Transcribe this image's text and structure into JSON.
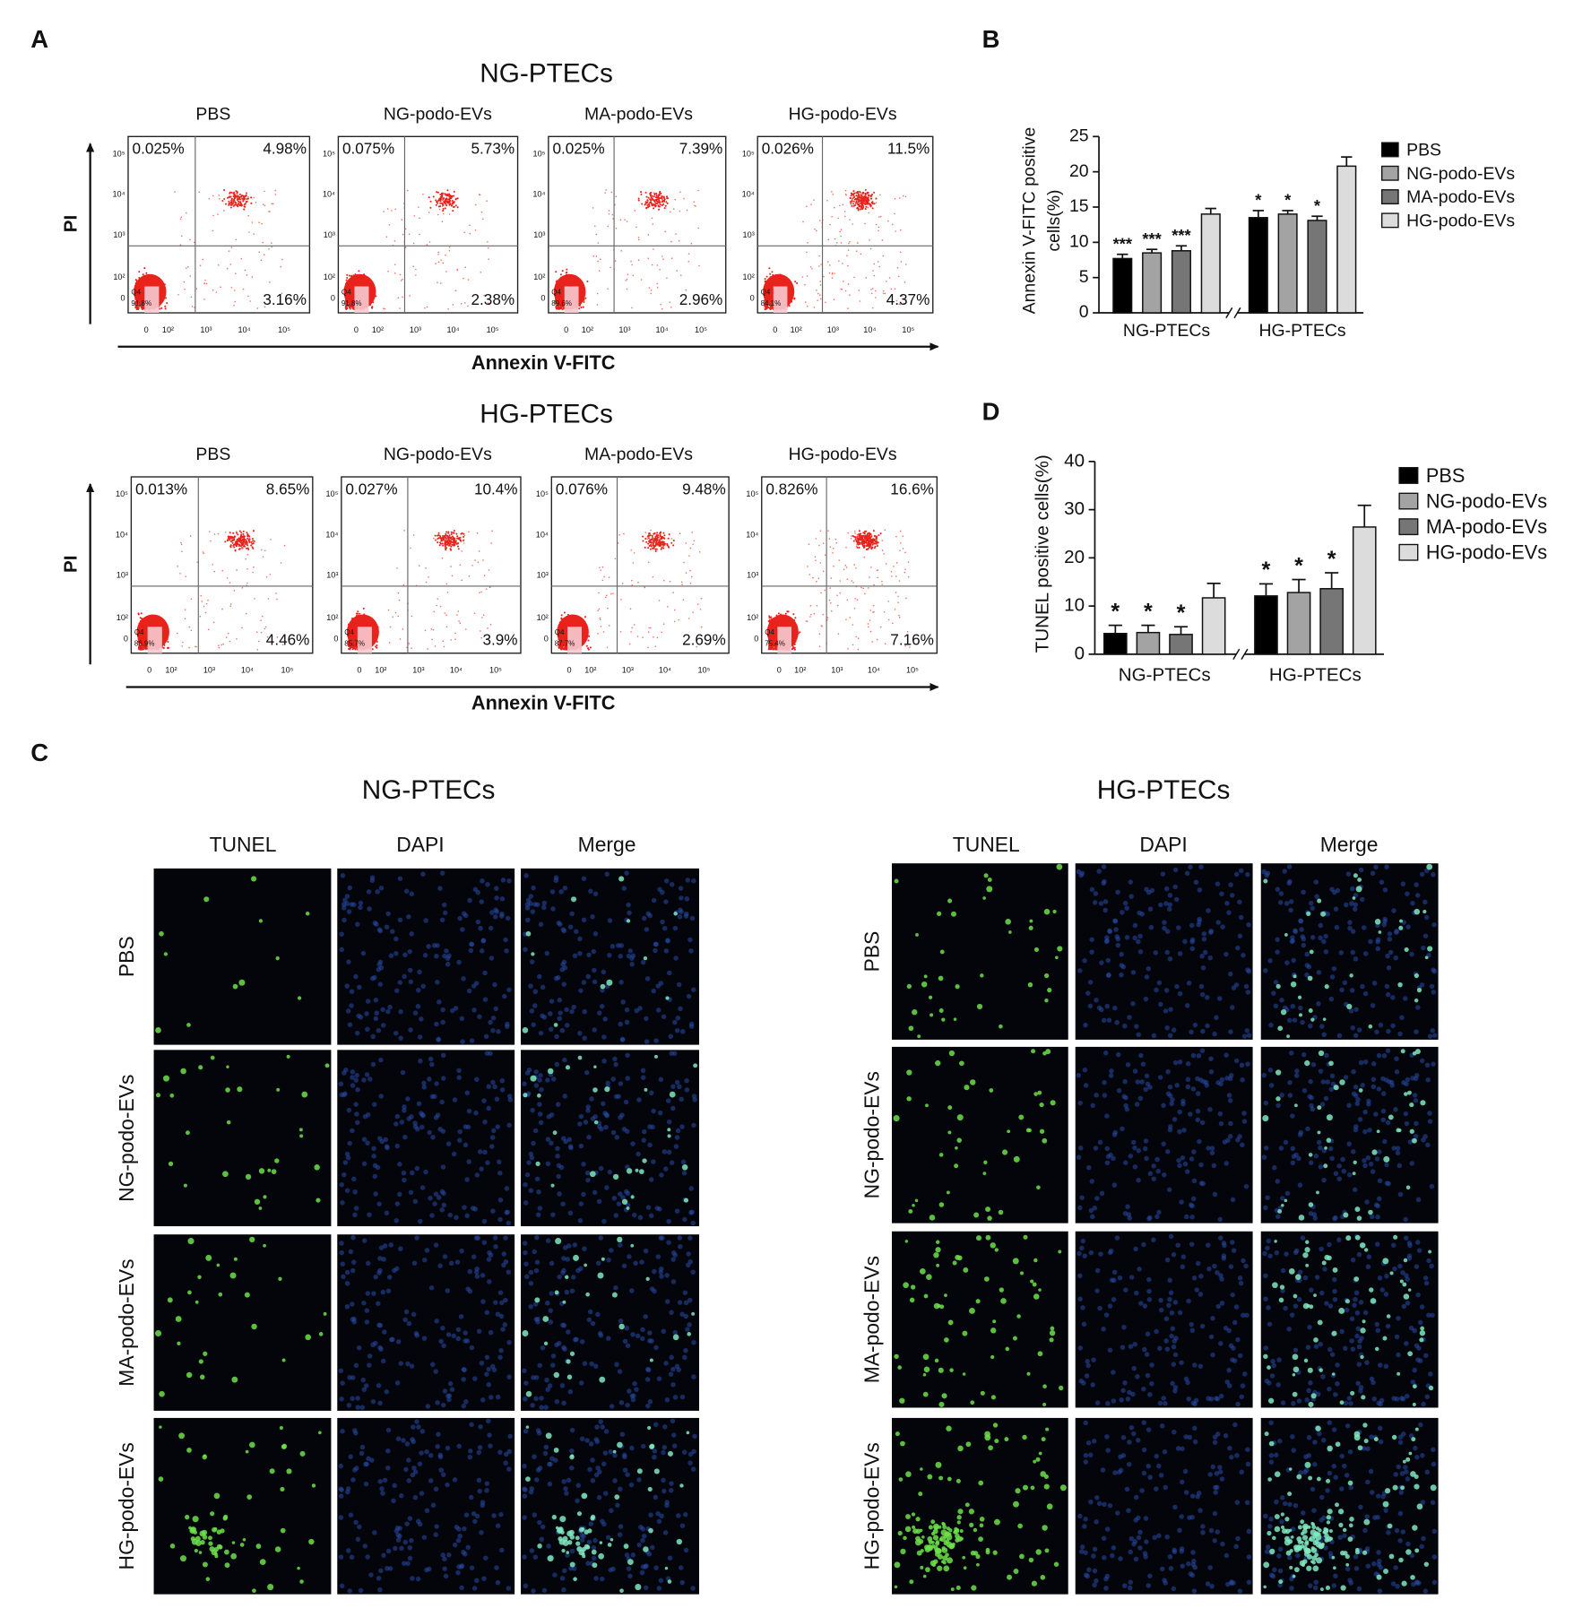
{
  "panel_a": {
    "letter": "A",
    "axis_x_label": "Annexin V-FITC",
    "axis_y_label": "PI",
    "x_tick_labels": [
      "0",
      "10²",
      "10³",
      "10⁴",
      "10⁵"
    ],
    "y_tick_labels": [
      "10⁵",
      "10⁴",
      "10³",
      "10²",
      "0"
    ],
    "gate_label": "Q4",
    "blocks": [
      {
        "title": "NG-PTECs",
        "plots": [
          {
            "label": "PBS",
            "ul": "0.025%",
            "ur": "4.98%",
            "lr": "3.16%",
            "ll": "91.8%"
          },
          {
            "label": "NG-podo-EVs",
            "ul": "0.075%",
            "ur": "5.73%",
            "lr": "2.38%",
            "ll": "91.8%"
          },
          {
            "label": "MA-podo-EVs",
            "ul": "0.025%",
            "ur": "7.39%",
            "lr": "2.96%",
            "ll": "89.6%"
          },
          {
            "label": "HG-podo-EVs",
            "ul": "0.026%",
            "ur": "11.5%",
            "lr": "4.37%",
            "ll": "84.1%"
          }
        ]
      },
      {
        "title": "HG-PTECs",
        "plots": [
          {
            "label": "PBS",
            "ul": "0.013%",
            "ur": "8.65%",
            "lr": "4.46%",
            "ll": "86.9%"
          },
          {
            "label": "NG-podo-EVs",
            "ul": "0.027%",
            "ur": "10.4%",
            "lr": "3.9%",
            "ll": "85.7%"
          },
          {
            "label": "MA-podo-EVs",
            "ul": "0.076%",
            "ur": "9.48%",
            "lr": "2.69%",
            "ll": "87.7%"
          },
          {
            "label": "HG-podo-EVs",
            "ul": "0.826%",
            "ur": "16.6%",
            "lr": "7.16%",
            "ll": "75.4%"
          }
        ]
      }
    ]
  },
  "chart_data": [
    {
      "type": "bar",
      "panel": "B",
      "ylabel": [
        "Annexin V-FITC positive",
        "cells(%)"
      ],
      "categories": [
        "NG-PTECs",
        "HG-PTECs"
      ],
      "ylim": [
        0,
        25
      ],
      "yticks": [
        0,
        5,
        10,
        15,
        20,
        25
      ],
      "series": [
        {
          "name": "PBS",
          "color": "#000000",
          "values": [
            7.7,
            13.5
          ],
          "errors": [
            0.6,
            1.0
          ],
          "annotations": [
            "***",
            "*"
          ]
        },
        {
          "name": "NG-podo-EVs",
          "color": "#a3a3a3",
          "values": [
            8.5,
            14.0
          ],
          "errors": [
            0.5,
            0.5
          ],
          "annotations": [
            "***",
            "*"
          ]
        },
        {
          "name": "MA-podo-EVs",
          "color": "#767676",
          "values": [
            8.8,
            13.1
          ],
          "errors": [
            0.7,
            0.6
          ],
          "annotations": [
            "***",
            "*"
          ]
        },
        {
          "name": "HG-podo-EVs",
          "color": "#dcdcdc",
          "values": [
            14.0,
            20.8
          ],
          "errors": [
            0.8,
            1.3
          ]
        }
      ]
    },
    {
      "type": "bar",
      "panel": "D",
      "ylabel": [
        "TUNEL positive cells(%)"
      ],
      "categories": [
        "NG-PTECs",
        "HG-PTECs"
      ],
      "ylim": [
        0,
        40
      ],
      "yticks": [
        0,
        10,
        20,
        30,
        40
      ],
      "series": [
        {
          "name": "PBS",
          "color": "#000000",
          "values": [
            4.3,
            12.1
          ],
          "errors": [
            1.7,
            2.5
          ],
          "annotations": [
            "*",
            "*"
          ]
        },
        {
          "name": "NG-podo-EVs",
          "color": "#a3a3a3",
          "values": [
            4.5,
            12.8
          ],
          "errors": [
            1.5,
            2.7
          ],
          "annotations": [
            "*",
            "*"
          ]
        },
        {
          "name": "MA-podo-EVs",
          "color": "#767676",
          "values": [
            4.1,
            13.6
          ],
          "errors": [
            1.6,
            3.3
          ],
          "annotations": [
            "*",
            "*"
          ]
        },
        {
          "name": "HG-podo-EVs",
          "color": "#dcdcdc",
          "values": [
            11.7,
            26.4
          ],
          "errors": [
            3.0,
            4.5
          ]
        }
      ]
    }
  ],
  "panel_c": {
    "letter": "C",
    "columns": [
      "TUNEL",
      "DAPI",
      "Merge"
    ],
    "rows": [
      "PBS",
      "NG-podo-EVs",
      "MA-podo-EVs",
      "HG-podo-EVs"
    ],
    "groups": [
      "NG-PTECs",
      "HG-PTECs"
    ]
  }
}
